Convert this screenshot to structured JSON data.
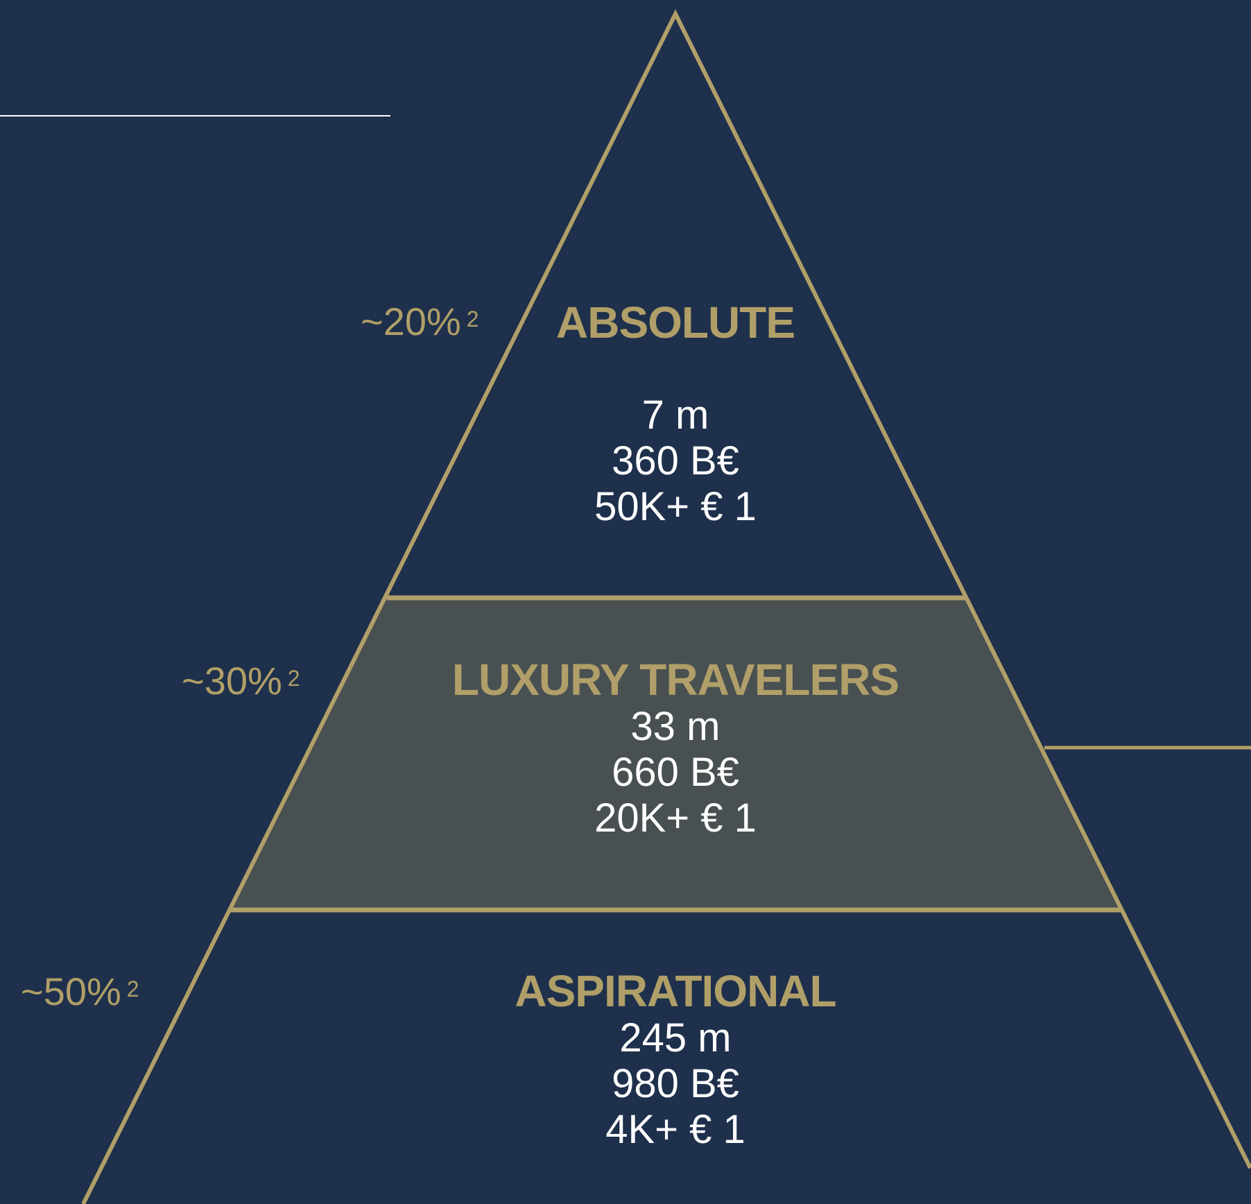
{
  "colors": {
    "background": "#1e304b",
    "gold": "#b09f68",
    "middle_tier_fill": "#485052",
    "text": "#ffffff",
    "rule": "#ffffff"
  },
  "tiers": [
    {
      "title": "ABSOLUTE",
      "stats": [
        "7 m",
        "360 B€",
        "50K+ € 1"
      ],
      "share": "~20%",
      "share_note": "2"
    },
    {
      "title": "LUXURY TRAVELERS",
      "stats": [
        "33 m",
        "660 B€",
        "20K+ € 1"
      ],
      "share": "~30%",
      "share_note": "2"
    },
    {
      "title": "ASPIRATIONAL",
      "stats": [
        "245 m",
        "980 B€",
        "4K+ € 1"
      ],
      "share": "~50%",
      "share_note": "2"
    }
  ]
}
